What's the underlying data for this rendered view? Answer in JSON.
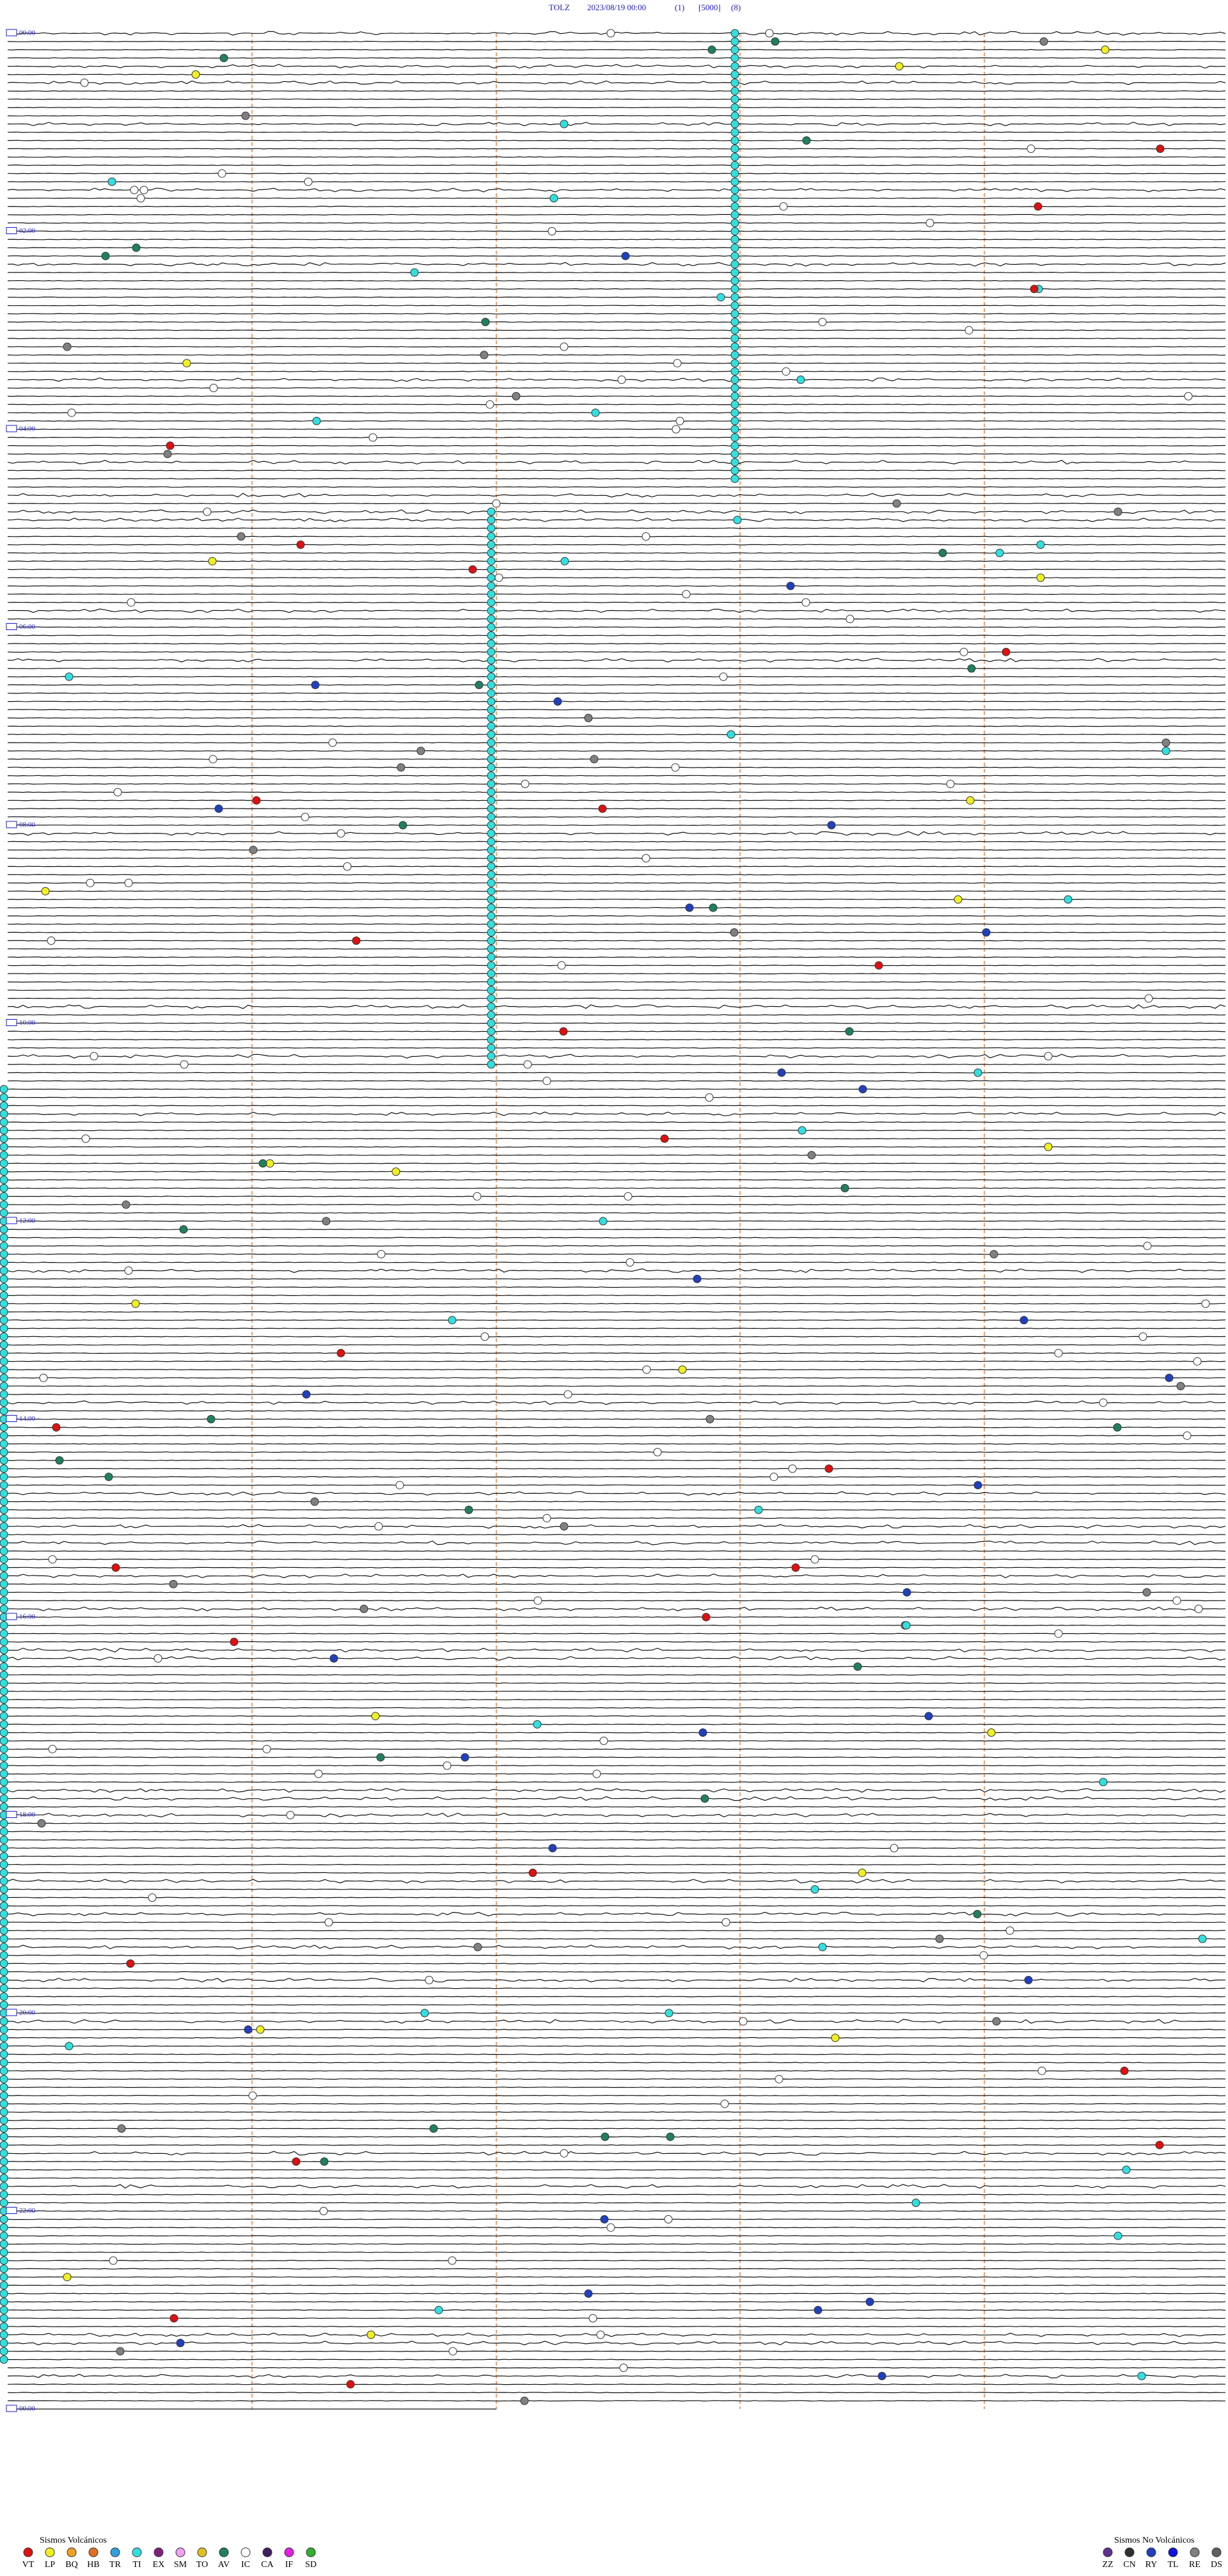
{
  "header": {
    "station": "TOLZ",
    "datetime": "2023/08/19 00:00",
    "param1": "(1)",
    "param2": "[5000]",
    "param3": "(8)"
  },
  "hour_labels": [
    "00:00",
    "02:00",
    "04:00",
    "06:00",
    "08:00",
    "10:00",
    "12:00",
    "14:00",
    "16:00",
    "18:00",
    "20:00",
    "22:00",
    "00:00"
  ],
  "legend": {
    "volcanic": {
      "title": "Sismos Volcánicos",
      "items": [
        {
          "label": "VT",
          "color": "#e01010"
        },
        {
          "label": "LP",
          "color": "#f0f020"
        },
        {
          "label": "BQ",
          "color": "#f0a020"
        },
        {
          "label": "HB",
          "color": "#e07020"
        },
        {
          "label": "TR",
          "color": "#30a0e0"
        },
        {
          "label": "TI",
          "color": "#30e0e0"
        },
        {
          "label": "EX",
          "color": "#802080"
        },
        {
          "label": "SM",
          "color": "#f0a0f0"
        },
        {
          "label": "TO",
          "color": "#e0c020"
        },
        {
          "label": "AV",
          "color": "#208060"
        },
        {
          "label": "IC",
          "color": "#ffffff"
        },
        {
          "label": "CA",
          "color": "#402060"
        },
        {
          "label": "IF",
          "color": "#e020e0"
        },
        {
          "label": "SD",
          "color": "#30b030"
        }
      ]
    },
    "non_volcanic": {
      "title": "Sismos No Volcánicos",
      "items": [
        {
          "label": "ZZ",
          "color": "#603090"
        },
        {
          "label": "CN",
          "color": "#303030"
        },
        {
          "label": "RY",
          "color": "#2040c0"
        },
        {
          "label": "TL",
          "color": "#1010e0"
        },
        {
          "label": "RE",
          "color": "#808080"
        },
        {
          "label": "DS",
          "color": "#606060"
        }
      ]
    }
  }
}
